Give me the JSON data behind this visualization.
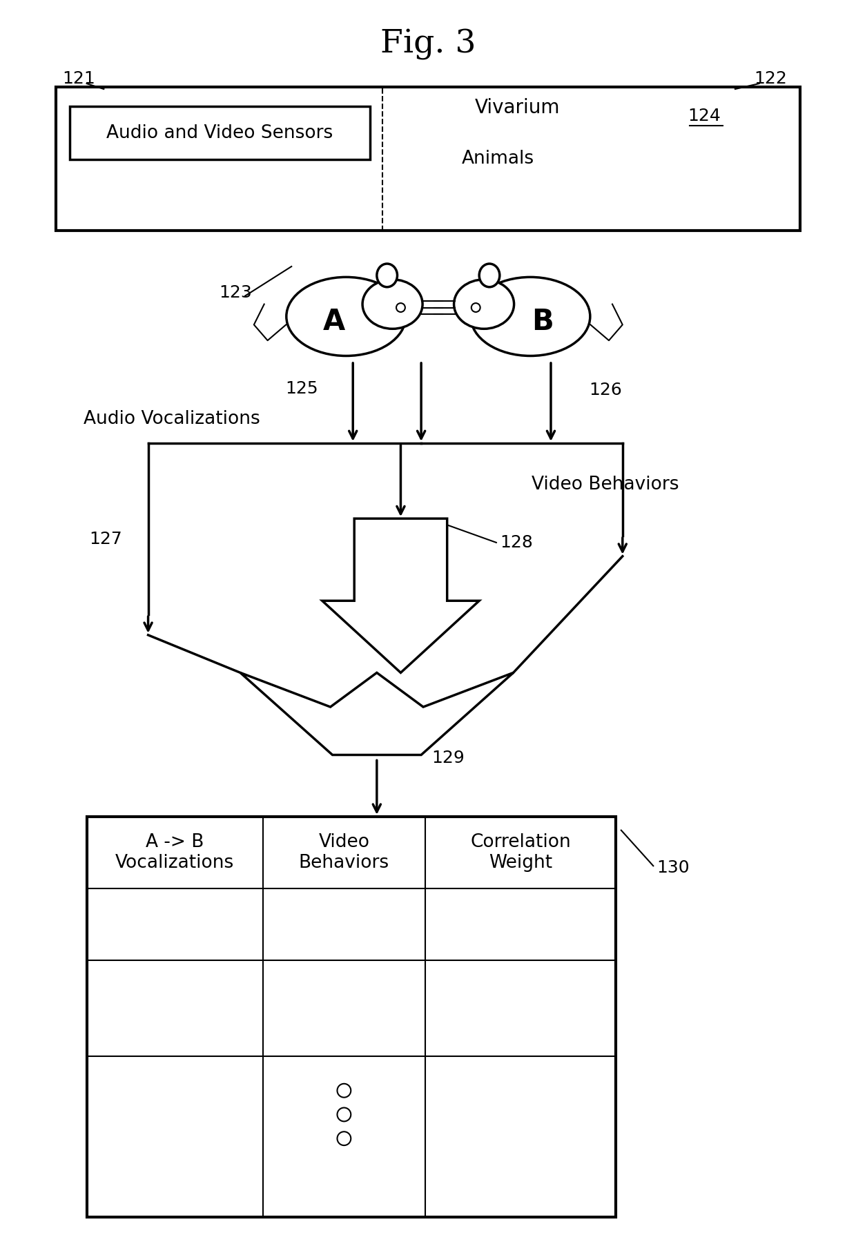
{
  "title": "Fig. 3",
  "bg_color": "#ffffff",
  "fig_width": 12.4,
  "fig_height": 18.02,
  "ref_121": "121",
  "ref_122": "122",
  "ref_123": "123",
  "ref_124": "124",
  "ref_125": "125",
  "ref_126": "126",
  "ref_127": "127",
  "ref_128": "128",
  "ref_129": "129",
  "ref_130": "130",
  "lbl_vivarium": "Vivarium",
  "lbl_animals": "Animals",
  "lbl_sensors": "Audio and Video Sensors",
  "lbl_audio": "Audio Vocalizations",
  "lbl_video": "Video Behaviors",
  "lbl_col1": "A -> B\nVocalizations",
  "lbl_col2": "Video\nBehaviors",
  "lbl_col3": "Correlation\nWeight"
}
